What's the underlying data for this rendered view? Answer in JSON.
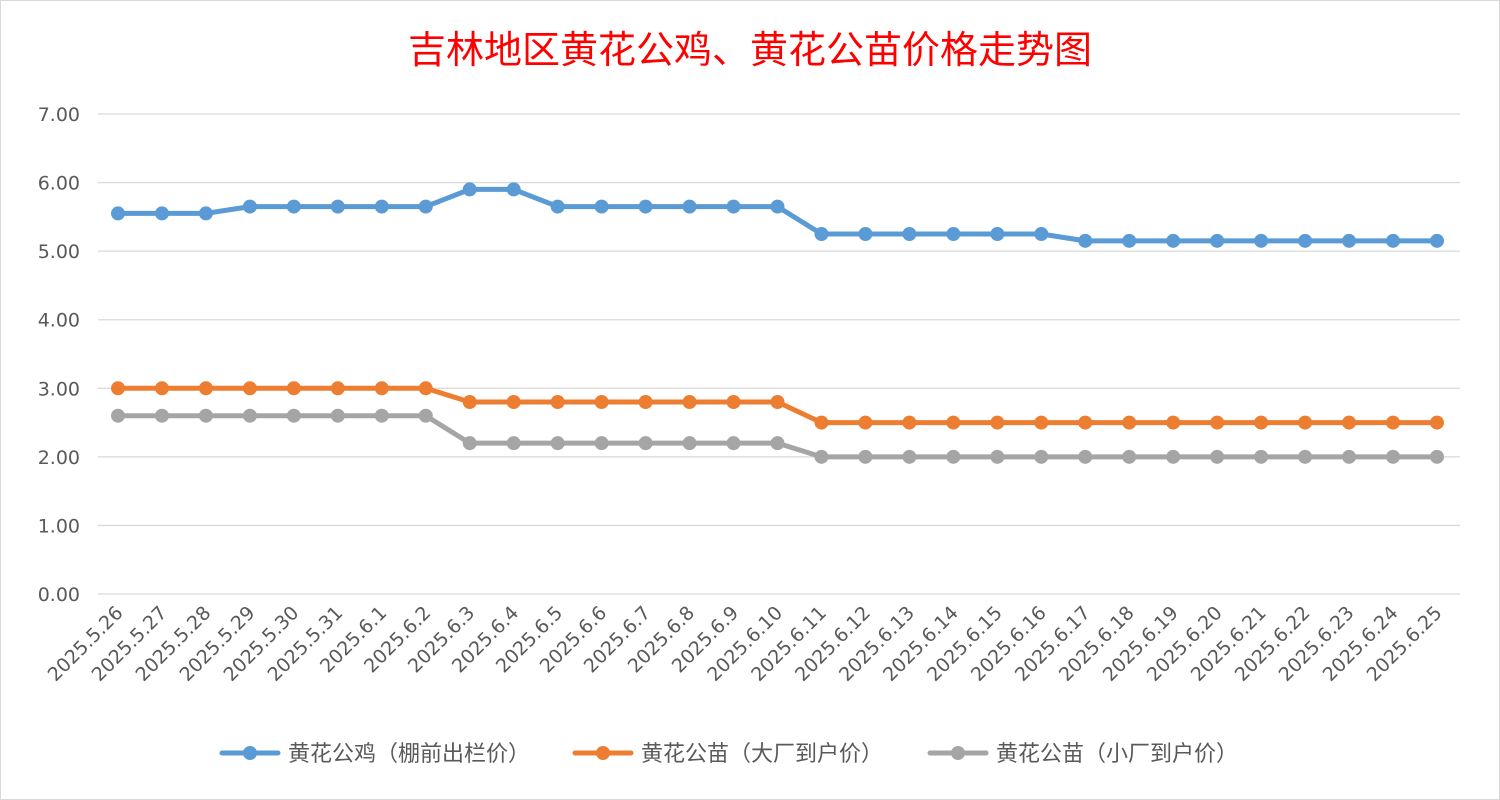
{
  "chart_data": {
    "type": "line",
    "title": "吉林地区黄花公鸡、黄花公苗价格走势图",
    "xlabel": "",
    "ylabel": "",
    "ylim": [
      0,
      7
    ],
    "yticks": [
      "0.00",
      "1.00",
      "2.00",
      "3.00",
      "4.00",
      "5.00",
      "6.00",
      "7.00"
    ],
    "grid": true,
    "legend_position": "bottom",
    "categories": [
      "2025.5.26",
      "2025.5.27",
      "2025.5.28",
      "2025.5.29",
      "2025.5.30",
      "2025.5.31",
      "2025.6.1",
      "2025.6.2",
      "2025.6.3",
      "2025.6.4",
      "2025.6.5",
      "2025.6.6",
      "2025.6.7",
      "2025.6.8",
      "2025.6.9",
      "2025.6.10",
      "2025.6.11",
      "2025.6.12",
      "2025.6.13",
      "2025.6.14",
      "2025.6.15",
      "2025.6.16",
      "2025.6.17",
      "2025.6.18",
      "2025.6.19",
      "2025.6.20",
      "2025.6.21",
      "2025.6.22",
      "2025.6.23",
      "2025.6.24",
      "2025.6.25"
    ],
    "series": [
      {
        "name": "黄花公鸡（棚前出栏价）",
        "color": "#5B9BD5",
        "values": [
          5.55,
          5.55,
          5.55,
          5.65,
          5.65,
          5.65,
          5.65,
          5.65,
          5.9,
          5.9,
          5.65,
          5.65,
          5.65,
          5.65,
          5.65,
          5.65,
          5.25,
          5.25,
          5.25,
          5.25,
          5.25,
          5.25,
          5.15,
          5.15,
          5.15,
          5.15,
          5.15,
          5.15,
          5.15,
          5.15,
          5.15
        ]
      },
      {
        "name": "黄花公苗（大厂到户价）",
        "color": "#ED7D31",
        "values": [
          3.0,
          3.0,
          3.0,
          3.0,
          3.0,
          3.0,
          3.0,
          3.0,
          2.8,
          2.8,
          2.8,
          2.8,
          2.8,
          2.8,
          2.8,
          2.8,
          2.5,
          2.5,
          2.5,
          2.5,
          2.5,
          2.5,
          2.5,
          2.5,
          2.5,
          2.5,
          2.5,
          2.5,
          2.5,
          2.5,
          2.5
        ]
      },
      {
        "name": "黄花公苗（小厂到户价）",
        "color": "#A5A5A5",
        "values": [
          2.6,
          2.6,
          2.6,
          2.6,
          2.6,
          2.6,
          2.6,
          2.6,
          2.2,
          2.2,
          2.2,
          2.2,
          2.2,
          2.2,
          2.2,
          2.2,
          2.0,
          2.0,
          2.0,
          2.0,
          2.0,
          2.0,
          2.0,
          2.0,
          2.0,
          2.0,
          2.0,
          2.0,
          2.0,
          2.0,
          2.0
        ]
      }
    ],
    "title_color": "#FF0000"
  }
}
